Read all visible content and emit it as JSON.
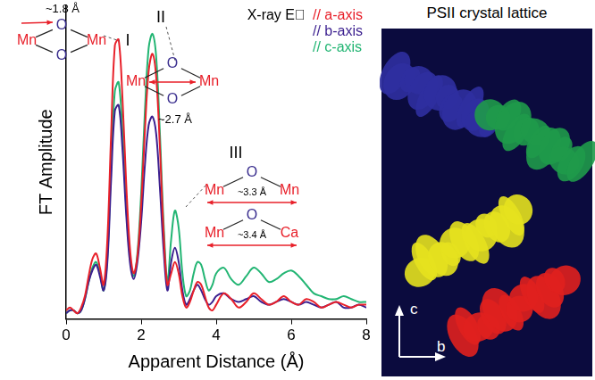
{
  "chart_data": {
    "type": "line",
    "xlabel": "Apparent Distance (Å)",
    "ylabel": "FT Amplitude",
    "x": [
      0,
      0.1,
      0.2,
      0.3,
      0.4,
      0.5,
      0.6,
      0.7,
      0.8,
      0.9,
      1.0,
      1.1,
      1.2,
      1.3,
      1.4,
      1.5,
      1.6,
      1.7,
      1.8,
      1.9,
      2.0,
      2.1,
      2.2,
      2.3,
      2.4,
      2.5,
      2.6,
      2.7,
      2.8,
      2.9,
      3.0,
      3.1,
      3.2,
      3.3,
      3.4,
      3.5,
      3.6,
      3.7,
      3.8,
      3.9,
      4.0,
      4.2,
      4.4,
      4.6,
      4.8,
      5.0,
      5.2,
      5.4,
      5.6,
      5.8,
      6.0,
      6.2,
      6.4,
      6.6,
      6.8,
      7.0,
      7.2,
      7.4,
      7.6,
      7.8,
      8.0
    ],
    "series": [
      {
        "name": "// a-axis",
        "color": "#e8202a",
        "values": [
          0.3,
          0.4,
          0.3,
          0.2,
          0.4,
          0.8,
          1.5,
          2.1,
          2.3,
          1.8,
          1.2,
          2.8,
          6.5,
          9.6,
          9.8,
          7.8,
          4.8,
          2.5,
          1.6,
          2.2,
          4.0,
          6.6,
          8.7,
          9.3,
          8.5,
          6.0,
          3.0,
          1.2,
          1.6,
          2.0,
          1.6,
          0.8,
          0.4,
          0.6,
          1.0,
          1.3,
          1.2,
          0.8,
          0.4,
          0.3,
          0.5,
          0.9,
          0.7,
          0.4,
          0.6,
          0.9,
          0.7,
          0.5,
          0.6,
          0.8,
          0.6,
          0.5,
          0.7,
          0.6,
          0.4,
          0.5,
          0.6,
          0.5,
          0.4,
          0.5,
          0.5
        ]
      },
      {
        "name": "// b-axis",
        "color": "#3b1f8f",
        "values": [
          0.2,
          0.3,
          0.3,
          0.2,
          0.3,
          0.7,
          1.3,
          1.7,
          1.9,
          1.5,
          1.0,
          2.0,
          4.9,
          7.3,
          7.5,
          6.0,
          3.7,
          2.0,
          1.4,
          2.0,
          3.4,
          5.4,
          6.8,
          7.1,
          6.5,
          4.6,
          2.4,
          1.0,
          2.0,
          2.5,
          2.0,
          1.0,
          0.5,
          0.7,
          1.0,
          1.2,
          1.0,
          0.7,
          0.5,
          0.6,
          0.8,
          0.9,
          0.7,
          0.6,
          0.7,
          0.8,
          0.6,
          0.5,
          0.6,
          0.7,
          0.6,
          0.5,
          0.6,
          0.5,
          0.4,
          0.5,
          0.6,
          0.4,
          0.4,
          0.5,
          0.4
        ]
      },
      {
        "name": "// c-axis",
        "color": "#22b573",
        "values": [
          0.2,
          0.3,
          0.3,
          0.2,
          0.3,
          0.7,
          1.3,
          1.8,
          2.0,
          1.6,
          1.0,
          2.2,
          5.4,
          8.0,
          8.3,
          6.6,
          4.0,
          2.2,
          1.5,
          2.3,
          4.4,
          7.3,
          9.5,
          10.0,
          9.2,
          6.5,
          3.3,
          1.3,
          2.8,
          3.8,
          3.2,
          1.6,
          0.8,
          1.0,
          1.6,
          2.0,
          1.9,
          1.4,
          1.0,
          1.2,
          1.6,
          1.8,
          1.4,
          1.2,
          1.5,
          1.8,
          1.6,
          1.3,
          1.4,
          1.6,
          1.7,
          1.5,
          1.2,
          0.9,
          0.8,
          0.7,
          0.7,
          0.8,
          0.7,
          0.6,
          0.6
        ]
      }
    ],
    "xlim": [
      0,
      8
    ],
    "xticks": [
      0,
      2,
      4,
      6,
      8
    ],
    "ylim": [
      0,
      11
    ],
    "yticks": [],
    "tick_labels": "x",
    "grid": false,
    "legend": "upper right",
    "legend_title": "X-ray E⃗",
    "peak_labels": [
      "I",
      "II",
      "III"
    ],
    "structures": [
      {
        "atoms": [
          "Mn",
          "O",
          "O",
          "Mn"
        ],
        "distance": "~1.8 Å"
      },
      {
        "atoms": [
          "Mn",
          "O",
          "O",
          "Mn"
        ],
        "distance": "~2.7 Å"
      },
      {
        "atoms": [
          "Mn",
          "O",
          "Mn"
        ],
        "distance": "~3.3 Å"
      },
      {
        "atoms": [
          "Mn",
          "O",
          "Ca"
        ],
        "distance": "~3.4 Å"
      }
    ]
  },
  "panel": {
    "title": "PSII crystal lattice",
    "axes": [
      "c",
      "b"
    ]
  }
}
